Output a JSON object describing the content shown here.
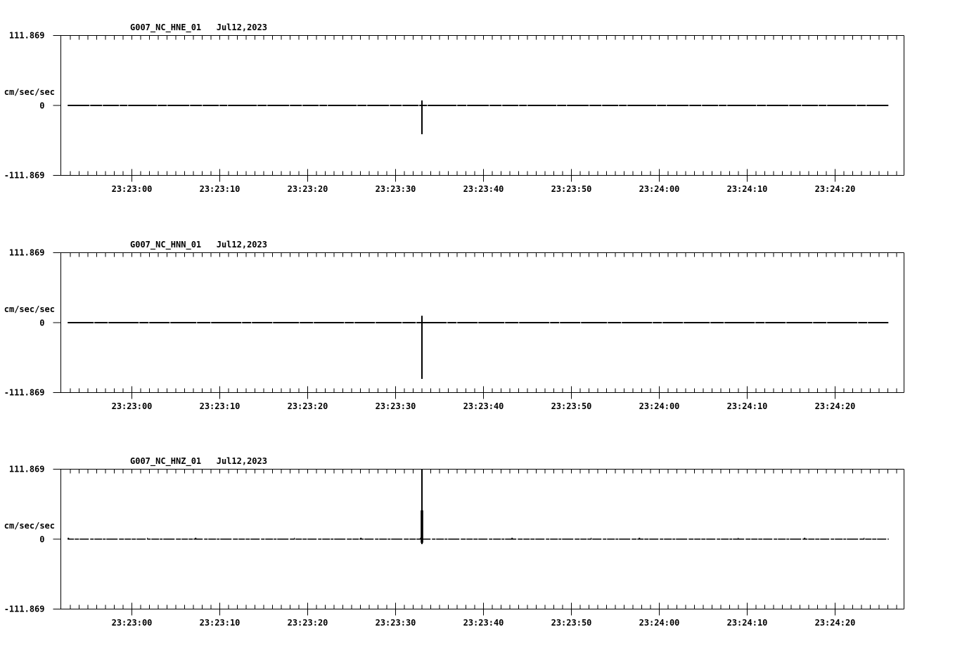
{
  "figure": {
    "background": "#ffffff",
    "ink": "#000000",
    "y_axis": {
      "units_label": "cm/sec/sec",
      "max_label": "111.869",
      "zero_label": "0",
      "min_label": "-111.869"
    },
    "x_tick_labels": [
      "23:23:00",
      "23:23:10",
      "23:23:20",
      "23:23:30",
      "23:23:40",
      "23:23:50",
      "23:24:00",
      "23:24:10",
      "23:24:20"
    ],
    "panels": [
      {
        "station_channel": "G007_NC_HNE_01",
        "date": "Jul12,2023"
      },
      {
        "station_channel": "G007_NC_HNN_01",
        "date": "Jul12,2023"
      },
      {
        "station_channel": "G007_NC_HNZ_01",
        "date": "Jul12,2023"
      }
    ]
  },
  "chart_data": [
    {
      "type": "line",
      "title": "G007_NC_HNE_01   Jul12,2023",
      "station": "G007",
      "network": "NC",
      "channel": "HNE",
      "location": "01",
      "date": "Jul12,2023",
      "ylabel": "cm/sec/sec",
      "ylim": [
        -111.869,
        111.869
      ],
      "yticks": [
        111.869,
        0,
        -111.869
      ],
      "xticks": [
        "23:23:00",
        "23:23:10",
        "23:23:20",
        "23:23:30",
        "23:23:40",
        "23:23:50",
        "23:24:00",
        "23:24:10",
        "23:24:20"
      ],
      "x_minor_tick_interval_s": 1,
      "x_major_tick_interval_s": 10,
      "grid": false,
      "baseline_value": 0,
      "trace": {
        "start_s_rel_first_tick": -7.3,
        "end_s_rel_first_tick": 86.1,
        "description": "flat near-zero acceleration trace with minor speckle noise"
      },
      "event": {
        "time": "23:23:33",
        "peak_positive": 8,
        "peak_negative": -46,
        "clipped": false
      }
    },
    {
      "type": "line",
      "title": "G007_NC_HNN_01   Jul12,2023",
      "station": "G007",
      "network": "NC",
      "channel": "HNN",
      "location": "01",
      "date": "Jul12,2023",
      "ylabel": "cm/sec/sec",
      "ylim": [
        -111.869,
        111.869
      ],
      "yticks": [
        111.869,
        0,
        -111.869
      ],
      "xticks": [
        "23:23:00",
        "23:23:10",
        "23:23:20",
        "23:23:30",
        "23:23:40",
        "23:23:50",
        "23:24:00",
        "23:24:10",
        "23:24:20"
      ],
      "x_minor_tick_interval_s": 1,
      "x_major_tick_interval_s": 10,
      "grid": false,
      "baseline_value": 0,
      "trace": {
        "start_s_rel_first_tick": -7.3,
        "end_s_rel_first_tick": 86.1,
        "description": "flat near-zero acceleration trace with minor speckle noise"
      },
      "event": {
        "time": "23:23:33",
        "peak_positive": 11,
        "peak_negative": -90,
        "clipped": false
      }
    },
    {
      "type": "line",
      "title": "G007_NC_HNZ_01   Jul12,2023",
      "station": "G007",
      "network": "NC",
      "channel": "HNZ",
      "location": "01",
      "date": "Jul12,2023",
      "ylabel": "cm/sec/sec",
      "ylim": [
        -111.869,
        111.869
      ],
      "yticks": [
        111.869,
        0,
        -111.869
      ],
      "xticks": [
        "23:23:00",
        "23:23:10",
        "23:23:20",
        "23:23:30",
        "23:23:40",
        "23:23:50",
        "23:24:00",
        "23:24:10",
        "23:24:20"
      ],
      "x_minor_tick_interval_s": 1,
      "x_major_tick_interval_s": 10,
      "grid": false,
      "baseline_value": 0,
      "trace": {
        "start_s_rel_first_tick": -7.3,
        "end_s_rel_first_tick": 86.1,
        "description": "thin near-zero acceleration trace with speckle noise"
      },
      "event": {
        "time": "23:23:33",
        "peak_positive": 111.869,
        "peak_negative": -8,
        "clipped": true,
        "core_segment": {
          "top_value": 46,
          "bottom_value": -6
        }
      }
    }
  ]
}
